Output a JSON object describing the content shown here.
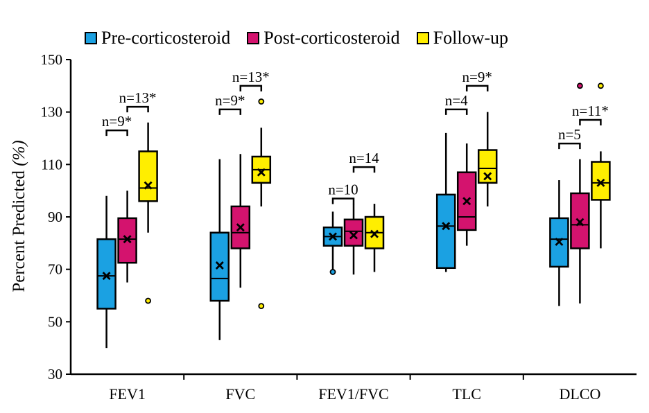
{
  "legend": {
    "items": [
      {
        "label": "Pre-corticosteroid",
        "color": "#1ba1e2"
      },
      {
        "label": "Post-corticosteroid",
        "color": "#d4136e"
      },
      {
        "label": "Follow-up",
        "color": "#ffee00"
      }
    ]
  },
  "axis": {
    "ylabel_prefix": "Percent Predicted ",
    "ylabel_unit": "(%)"
  },
  "chart_data": {
    "type": "box",
    "categories": [
      "FEV1",
      "FVC",
      "FEV1/FVC",
      "TLC",
      "DLCO"
    ],
    "ylim": [
      30,
      150
    ],
    "yticks": [
      30,
      50,
      70,
      90,
      110,
      130,
      150
    ],
    "ylabel": "Percent Predicted (%)",
    "legend_position": "top",
    "grid": false,
    "series": [
      {
        "name": "Pre-corticosteroid",
        "color": "#1ba1e2",
        "boxes": [
          {
            "min": 40,
            "q1": 55,
            "median": 67.5,
            "q3": 81.5,
            "max": 98,
            "mean": 67.5,
            "outliers": []
          },
          {
            "min": 43,
            "q1": 58,
            "median": 66.5,
            "q3": 84,
            "max": 112,
            "mean": 71.5,
            "outliers": []
          },
          {
            "min": 69,
            "q1": 79,
            "median": 82.5,
            "q3": 86,
            "max": 92,
            "mean": 82.5,
            "outliers": [
              69
            ]
          },
          {
            "min": 69,
            "q1": 70.5,
            "median": 86.5,
            "q3": 98.5,
            "max": 122,
            "mean": 86.5,
            "outliers": []
          },
          {
            "min": 56,
            "q1": 71,
            "median": 81.5,
            "q3": 89.5,
            "max": 104,
            "mean": 80.5,
            "outliers": []
          }
        ]
      },
      {
        "name": "Post-corticosteroid",
        "color": "#d4136e",
        "boxes": [
          {
            "min": 65,
            "q1": 72.5,
            "median": 81.5,
            "q3": 89.5,
            "max": 100,
            "mean": 81.5,
            "outliers": []
          },
          {
            "min": 63,
            "q1": 78,
            "median": 84,
            "q3": 94,
            "max": 114,
            "mean": 86,
            "outliers": []
          },
          {
            "min": 68,
            "q1": 79,
            "median": 84.5,
            "q3": 89,
            "max": 95,
            "mean": 83,
            "outliers": []
          },
          {
            "min": 79,
            "q1": 85,
            "median": 90,
            "q3": 107,
            "max": 118,
            "mean": 96,
            "outliers": []
          },
          {
            "min": 57,
            "q1": 78,
            "median": 87,
            "q3": 99,
            "max": 112,
            "mean": 88,
            "outliers": [
              140
            ]
          }
        ]
      },
      {
        "name": "Follow-up",
        "color": "#ffee00",
        "boxes": [
          {
            "min": 84,
            "q1": 96,
            "median": 101,
            "q3": 115,
            "max": 126,
            "mean": 102,
            "outliers": [
              58
            ]
          },
          {
            "min": 94,
            "q1": 103,
            "median": 108,
            "q3": 113,
            "max": 124,
            "mean": 107,
            "outliers": [
              56,
              134
            ]
          },
          {
            "min": 69,
            "q1": 78,
            "median": 84,
            "q3": 90,
            "max": 95,
            "mean": 83.5,
            "outliers": []
          },
          {
            "min": 94,
            "q1": 103,
            "median": 108.5,
            "q3": 115.5,
            "max": 130,
            "mean": 105.5,
            "outliers": []
          },
          {
            "min": 78,
            "q1": 96.5,
            "median": 103,
            "q3": 111,
            "max": 115,
            "mean": 103,
            "outliers": [
              140
            ]
          }
        ]
      }
    ],
    "annotations": [
      {
        "category": 0,
        "from_series": 0,
        "to_series": 1,
        "label": "n=9*",
        "y": 123
      },
      {
        "category": 0,
        "from_series": 1,
        "to_series": 2,
        "label": "n=13*",
        "y": 132
      },
      {
        "category": 1,
        "from_series": 0,
        "to_series": 1,
        "label": "n=9*",
        "y": 131
      },
      {
        "category": 1,
        "from_series": 1,
        "to_series": 2,
        "label": "n=13*",
        "y": 140
      },
      {
        "category": 2,
        "from_series": 0,
        "to_series": 1,
        "label": "n=10",
        "y": 97
      },
      {
        "category": 2,
        "from_series": 1,
        "to_series": 2,
        "label": "n=14",
        "y": 109
      },
      {
        "category": 3,
        "from_series": 0,
        "to_series": 1,
        "label": "n=4",
        "y": 131
      },
      {
        "category": 3,
        "from_series": 1,
        "to_series": 2,
        "label": "n=9*",
        "y": 140
      },
      {
        "category": 4,
        "from_series": 0,
        "to_series": 1,
        "label": "n=5",
        "y": 118
      },
      {
        "category": 4,
        "from_series": 1,
        "to_series": 2,
        "label": "n=11*",
        "y": 127
      }
    ]
  }
}
